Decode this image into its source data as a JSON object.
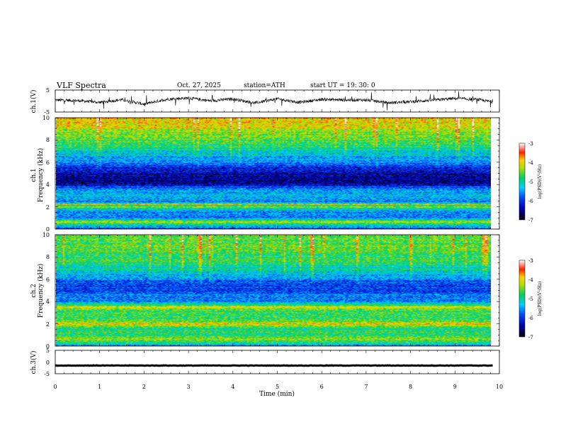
{
  "header": {
    "title": "VLF  Spectra",
    "date": "Oct. 27, 2025",
    "station": "station=ATH",
    "start_ut": "start  UT  =    19: 30: 0"
  },
  "chart_data": [
    {
      "type": "line",
      "panel": "ch1-waveform",
      "ylabel": "ch.1(V)",
      "ylim": [
        -5,
        5
      ],
      "y_ticks": [
        "5",
        "-5"
      ],
      "xlim": [
        0,
        10
      ],
      "data_extent_min": 9.85,
      "baseline_profile": {
        "x": [
          0,
          0.5,
          1.0,
          1.5,
          2.0,
          2.5,
          3.0,
          3.5,
          4.0,
          4.5,
          5.0,
          5.5,
          6.0,
          6.5,
          7.0,
          7.5,
          8.0,
          8.5,
          9.0,
          9.5,
          9.85
        ],
        "y": [
          0.5,
          0.2,
          -0.6,
          0.6,
          -1.4,
          0.8,
          1.4,
          0.1,
          1.0,
          -0.9,
          1.0,
          -0.6,
          0.8,
          0.5,
          0.5,
          -0.8,
          -0.3,
          0.4,
          1.2,
          0.7,
          -0.4
        ]
      },
      "color": "#000000"
    },
    {
      "type": "heatmap",
      "panel": "ch1-spectrogram",
      "ylabel": "ch.1\nFrequency  (kHz)",
      "ylim": [
        0,
        10
      ],
      "y_ticks": [
        "0",
        "2",
        "4",
        "6",
        "8",
        "10"
      ],
      "xlim": [
        0,
        10
      ],
      "colorbar": {
        "label": "log(PSD)(V²/Hz)",
        "ticks": [
          "-3",
          "-4",
          "-5",
          "-6",
          "-7"
        ],
        "range": [
          -7,
          -3
        ]
      },
      "freq_profile_khz": [
        0,
        0.3,
        0.6,
        1.0,
        1.5,
        2.0,
        2.5,
        3.0,
        3.5,
        4.0,
        4.5,
        5.0,
        5.5,
        6.0,
        6.5,
        7.0,
        7.5,
        8.0,
        8.5,
        9.0,
        9.5,
        10.0
      ],
      "mean_log_psd": [
        -5.8,
        -5.2,
        -4.4,
        -5.6,
        -5.6,
        -4.5,
        -5.6,
        -5.3,
        -5.5,
        -6.4,
        -6.5,
        -6.4,
        -6.0,
        -5.6,
        -5.4,
        -5.1,
        -4.9,
        -4.7,
        -4.5,
        -4.3,
        -4.2,
        -4.1
      ],
      "lines": [
        {
          "freq_khz": 2.2,
          "log_psd": -3.8
        },
        {
          "freq_khz": 0.6,
          "log_psd": -4.2
        }
      ]
    },
    {
      "type": "heatmap",
      "panel": "ch2-spectrogram",
      "ylabel": "ch.2\nFrequency  (kHz)",
      "ylim": [
        0,
        10
      ],
      "y_ticks": [
        "0",
        "2",
        "4",
        "6",
        "8",
        "10"
      ],
      "xlim": [
        0,
        10
      ],
      "colorbar": {
        "label": "log(PSD)(V²/Hz)",
        "ticks": [
          "-3",
          "-4",
          "-5",
          "-6",
          "-7"
        ],
        "range": [
          -7,
          -3
        ]
      },
      "freq_profile_khz": [
        0,
        0.3,
        0.6,
        1.0,
        1.5,
        2.0,
        2.5,
        3.0,
        3.5,
        4.0,
        4.5,
        5.0,
        5.5,
        6.0,
        6.5,
        7.0,
        7.5,
        8.0,
        8.5,
        9.0,
        9.5,
        10.0
      ],
      "mean_log_psd": [
        -5.6,
        -4.8,
        -4.5,
        -4.7,
        -4.9,
        -4.2,
        -4.9,
        -4.6,
        -4.3,
        -5.6,
        -5.6,
        -5.9,
        -6.1,
        -5.7,
        -5.3,
        -5.1,
        -4.9,
        -4.8,
        -4.8,
        -4.7,
        -4.7,
        -4.7
      ],
      "lines": [
        {
          "freq_khz": 2.0,
          "log_psd": -3.8
        },
        {
          "freq_khz": 3.5,
          "log_psd": -4.0
        }
      ]
    },
    {
      "type": "line",
      "panel": "ch3-waveform",
      "ylabel": "ch.3(V)",
      "ylim": [
        -5,
        5
      ],
      "y_ticks": [
        "5",
        "0",
        "-5"
      ],
      "xlim": [
        0,
        10
      ],
      "data_extent_min": 9.85,
      "baseline_value": -1.5,
      "color": "#000000"
    }
  ],
  "xaxis": {
    "label": "Time  (min)",
    "ticks": [
      "0",
      "1",
      "2",
      "3",
      "4",
      "5",
      "6",
      "7",
      "8",
      "9",
      "10"
    ]
  }
}
